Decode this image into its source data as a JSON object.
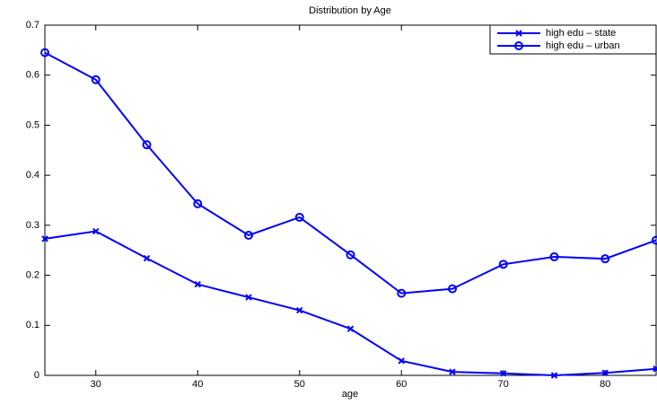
{
  "chart_data": {
    "type": "line",
    "title": "Distribution by Age",
    "xlabel": "age",
    "x": [
      25,
      30,
      35,
      40,
      45,
      50,
      55,
      60,
      65,
      70,
      75,
      80,
      85
    ],
    "series": [
      {
        "name": "high edu – state",
        "color": "#0000ff",
        "marker": "x",
        "values": [
          0.273,
          0.288,
          0.234,
          0.182,
          0.156,
          0.13,
          0.093,
          0.029,
          0.007,
          0.004,
          0.0,
          0.005,
          0.013
        ]
      },
      {
        "name": "high edu – urban",
        "color": "#0000ff",
        "marker": "o",
        "values": [
          0.645,
          0.591,
          0.461,
          0.343,
          0.28,
          0.316,
          0.241,
          0.164,
          0.173,
          0.222,
          0.237,
          0.233,
          0.27
        ]
      }
    ],
    "xlim": [
      25,
      85
    ],
    "xticks": [
      30,
      40,
      50,
      60,
      70,
      80
    ],
    "ylim": [
      0,
      0.7
    ],
    "yticks": [
      0,
      0.1,
      0.2,
      0.3,
      0.4,
      0.5,
      0.6,
      0.7
    ],
    "legend": "upper right"
  }
}
